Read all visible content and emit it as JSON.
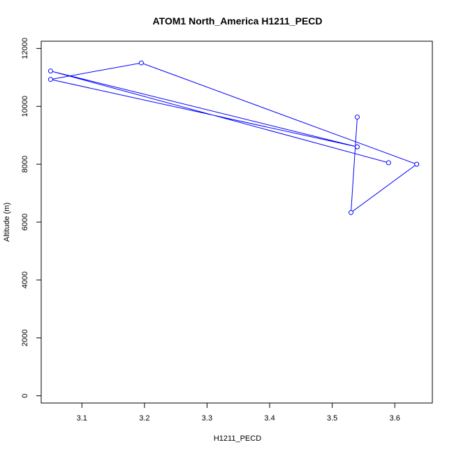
{
  "chart_data": {
    "type": "line",
    "title": "ATOM1 North_America H1211_PECD",
    "xlabel": "H1211_PECD",
    "ylabel": "Altitude (m)",
    "xlim": [
      3.035,
      3.66
    ],
    "ylim": [
      -250,
      12250
    ],
    "x_ticks": [
      3.1,
      3.2,
      3.3,
      3.4,
      3.5,
      3.6
    ],
    "x_tick_labels": [
      "3.1",
      "3.2",
      "3.3",
      "3.4",
      "3.5",
      "3.6"
    ],
    "y_ticks": [
      0,
      2000,
      4000,
      6000,
      8000,
      10000,
      12000
    ],
    "y_tick_labels": [
      "0",
      "2000",
      "4000",
      "6000",
      "8000",
      "10000",
      "12000"
    ],
    "series": [
      {
        "color": "#0000ff",
        "x": [
          3.54,
          3.53,
          3.635,
          3.195,
          3.05,
          3.54,
          3.05,
          3.59
        ],
        "y": [
          9630,
          6330,
          8000,
          11500,
          10930,
          8600,
          11220,
          8050
        ]
      }
    ],
    "grid": false,
    "legend": "none"
  }
}
